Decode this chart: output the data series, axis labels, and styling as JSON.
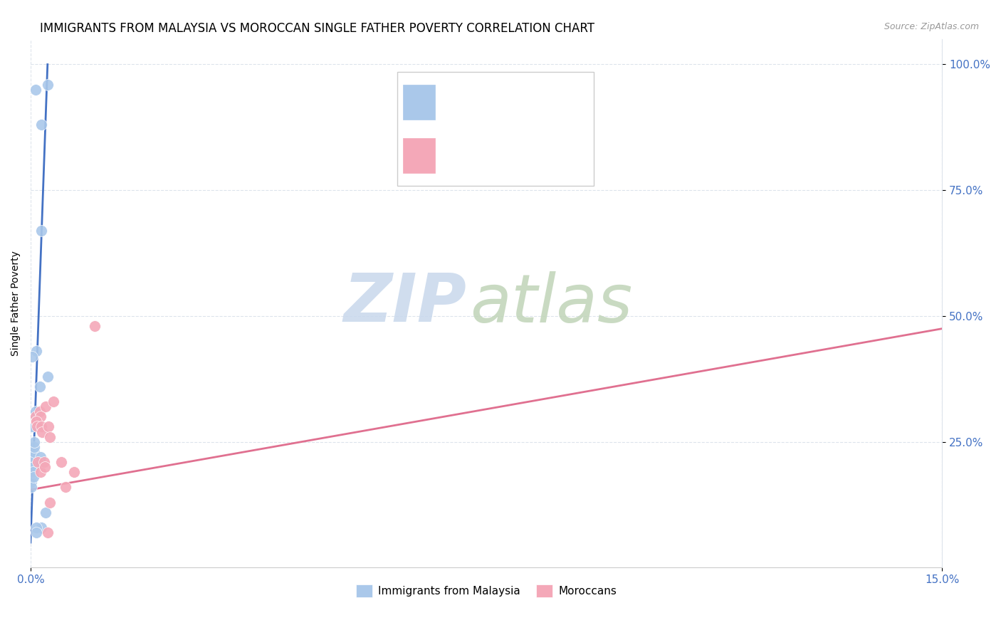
{
  "title": "IMMIGRANTS FROM MALAYSIA VS MOROCCAN SINGLE FATHER POVERTY CORRELATION CHART",
  "source": "Source: ZipAtlas.com",
  "ylabel": "Single Father Poverty",
  "legend_label1": "Immigrants from Malaysia",
  "legend_label2": "Moroccans",
  "malaysia_scatter": [
    [
      0.0002,
      0.2
    ],
    [
      0.0008,
      0.95
    ],
    [
      0.0018,
      0.88
    ],
    [
      0.0028,
      0.96
    ],
    [
      0.0018,
      0.67
    ],
    [
      0.001,
      0.43
    ],
    [
      0.0028,
      0.38
    ],
    [
      0.0002,
      0.42
    ],
    [
      0.0003,
      0.3
    ],
    [
      0.0003,
      0.28
    ],
    [
      0.0001,
      0.2
    ],
    [
      0.0002,
      0.21
    ],
    [
      0.0002,
      0.2
    ],
    [
      0.0001,
      0.19
    ],
    [
      0.0001,
      0.18
    ],
    [
      0.0001,
      0.17
    ],
    [
      0.0002,
      0.22
    ],
    [
      0.0001,
      0.21
    ],
    [
      0.0001,
      0.16
    ],
    [
      0.0002,
      0.23
    ],
    [
      0.0001,
      0.2
    ],
    [
      0.0005,
      0.21
    ],
    [
      0.0005,
      0.22
    ],
    [
      0.0006,
      0.23
    ],
    [
      0.0005,
      0.2
    ],
    [
      0.0004,
      0.19
    ],
    [
      0.0006,
      0.24
    ],
    [
      0.0005,
      0.18
    ],
    [
      0.0006,
      0.25
    ],
    [
      0.0015,
      0.36
    ],
    [
      0.0015,
      0.21
    ],
    [
      0.0016,
      0.22
    ],
    [
      0.0008,
      0.31
    ],
    [
      0.0009,
      0.29
    ],
    [
      0.0018,
      0.08
    ],
    [
      0.0025,
      0.11
    ],
    [
      0.001,
      0.08
    ],
    [
      0.0009,
      0.07
    ]
  ],
  "moroccan_scatter": [
    [
      0.0008,
      0.3
    ],
    [
      0.0009,
      0.29
    ],
    [
      0.0015,
      0.31
    ],
    [
      0.0016,
      0.3
    ],
    [
      0.001,
      0.29
    ],
    [
      0.0011,
      0.28
    ],
    [
      0.0018,
      0.28
    ],
    [
      0.0019,
      0.27
    ],
    [
      0.0012,
      0.21
    ],
    [
      0.0016,
      0.19
    ],
    [
      0.0022,
      0.21
    ],
    [
      0.0023,
      0.2
    ],
    [
      0.0025,
      0.32
    ],
    [
      0.003,
      0.28
    ],
    [
      0.0032,
      0.26
    ],
    [
      0.0038,
      0.33
    ],
    [
      0.005,
      0.21
    ],
    [
      0.0072,
      0.19
    ],
    [
      0.0105,
      0.48
    ],
    [
      0.0058,
      0.16
    ],
    [
      0.0032,
      0.13
    ],
    [
      0.0028,
      0.07
    ]
  ],
  "malaysia_line_x": [
    0.0,
    0.0028
  ],
  "malaysia_line_y": [
    0.05,
    1.0
  ],
  "moroccan_line_x": [
    0.0,
    0.15
  ],
  "moroccan_line_y": [
    0.155,
    0.475
  ],
  "xlim": [
    0,
    0.15
  ],
  "ylim": [
    0,
    1.05
  ],
  "malaysia_color": "#aac8ea",
  "moroccan_color": "#f4a8b8",
  "malaysia_line_color": "#4472c4",
  "moroccan_line_color": "#e07090",
  "grid_color": "#dde4ec",
  "background_color": "#ffffff",
  "title_fontsize": 12,
  "axis_label_fontsize": 10,
  "tick_fontsize": 11,
  "r_color_blue": "#4472c4",
  "r_color_pink": "#e07090",
  "n_color": "#e05020",
  "watermark_zip_color": "#c8d8ec",
  "watermark_atlas_color": "#c0d4b8"
}
